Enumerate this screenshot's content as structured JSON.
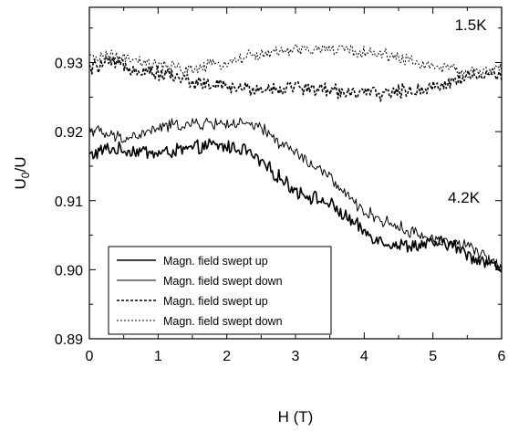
{
  "chart_data": {
    "type": "line",
    "xlabel": "H (T)",
    "ylabel": "U0/U",
    "ylabel_main": "U",
    "ylabel_sub": "0",
    "ylabel_rest": "/U",
    "xlim": [
      0,
      6
    ],
    "ylim": [
      0.89,
      0.938
    ],
    "x_ticks": [
      0,
      1,
      2,
      3,
      4,
      5,
      6
    ],
    "x_tick_labels": [
      "0",
      "1",
      "2",
      "3",
      "4",
      "5",
      "6"
    ],
    "y_ticks": [
      0.89,
      0.9,
      0.91,
      0.92,
      0.93
    ],
    "y_tick_labels": [
      "0.89",
      "0.90",
      "0.91",
      "0.92",
      "0.93"
    ],
    "grid": false,
    "legend_position": "bottom-left",
    "annotations": [
      {
        "text": "1.5K",
        "x": 5.55,
        "y": 0.9355
      },
      {
        "text": "4.2K",
        "x": 5.45,
        "y": 0.9105
      }
    ],
    "series": [
      {
        "name": "Magn. field swept up",
        "temperature": "4.2K",
        "line_style": "solid",
        "line_weight": "thick",
        "x": [
          0,
          0.25,
          0.5,
          0.75,
          1.0,
          1.25,
          1.5,
          1.75,
          2.0,
          2.25,
          2.5,
          2.75,
          3.0,
          3.25,
          3.5,
          3.75,
          4.0,
          4.25,
          4.5,
          4.75,
          5.0,
          5.25,
          5.5,
          5.75,
          6.0
        ],
        "y": [
          0.9165,
          0.9175,
          0.9173,
          0.9172,
          0.9168,
          0.9172,
          0.9175,
          0.918,
          0.9178,
          0.9175,
          0.9155,
          0.9135,
          0.9115,
          0.9105,
          0.9095,
          0.9075,
          0.9055,
          0.9042,
          0.9035,
          0.9035,
          0.9038,
          0.9038,
          0.9022,
          0.9012,
          0.9002
        ]
      },
      {
        "name": "Magn. field swept down",
        "temperature": "4.2K",
        "line_style": "solid",
        "line_weight": "thin",
        "x": [
          0,
          0.25,
          0.5,
          0.75,
          1.0,
          1.25,
          1.5,
          1.75,
          2.0,
          2.25,
          2.5,
          2.75,
          3.0,
          3.25,
          3.5,
          3.75,
          4.0,
          4.25,
          4.5,
          4.75,
          5.0,
          5.25,
          5.5,
          5.75,
          6.0
        ],
        "y": [
          0.9205,
          0.9195,
          0.919,
          0.9195,
          0.9205,
          0.921,
          0.921,
          0.9212,
          0.9212,
          0.921,
          0.9205,
          0.9185,
          0.917,
          0.915,
          0.9135,
          0.9105,
          0.9085,
          0.9072,
          0.9062,
          0.9052,
          0.9045,
          0.904,
          0.9035,
          0.9018,
          0.9005
        ]
      },
      {
        "name": "Magn. field swept up",
        "temperature": "1.5K",
        "line_style": "dashed",
        "line_weight": "thick",
        "x": [
          0,
          0.25,
          0.5,
          0.75,
          1.0,
          1.25,
          1.5,
          1.75,
          2.0,
          2.25,
          2.5,
          2.75,
          3.0,
          3.25,
          3.5,
          3.75,
          4.0,
          4.25,
          4.5,
          4.75,
          5.0,
          5.25,
          5.5,
          5.75,
          6.0
        ],
        "y": [
          0.929,
          0.93,
          0.9295,
          0.929,
          0.9285,
          0.928,
          0.9272,
          0.9268,
          0.9265,
          0.9262,
          0.9262,
          0.9262,
          0.9265,
          0.9262,
          0.926,
          0.9258,
          0.9255,
          0.9255,
          0.9258,
          0.926,
          0.9265,
          0.9272,
          0.928,
          0.9282,
          0.928
        ]
      },
      {
        "name": "Magn. field swept down",
        "temperature": "1.5K",
        "line_style": "dashed",
        "line_weight": "thin",
        "x": [
          0,
          0.25,
          0.5,
          0.75,
          1.0,
          1.25,
          1.5,
          1.75,
          2.0,
          2.25,
          2.5,
          2.75,
          3.0,
          3.25,
          3.5,
          3.75,
          4.0,
          4.25,
          4.5,
          4.75,
          5.0,
          5.25,
          5.5,
          5.75,
          6.0
        ],
        "y": [
          0.9305,
          0.931,
          0.9305,
          0.93,
          0.9295,
          0.9292,
          0.929,
          0.9295,
          0.93,
          0.9308,
          0.9312,
          0.9315,
          0.9318,
          0.9318,
          0.932,
          0.9318,
          0.9315,
          0.9312,
          0.9308,
          0.93,
          0.9295,
          0.929,
          0.9285,
          0.9288,
          0.929
        ]
      }
    ]
  }
}
